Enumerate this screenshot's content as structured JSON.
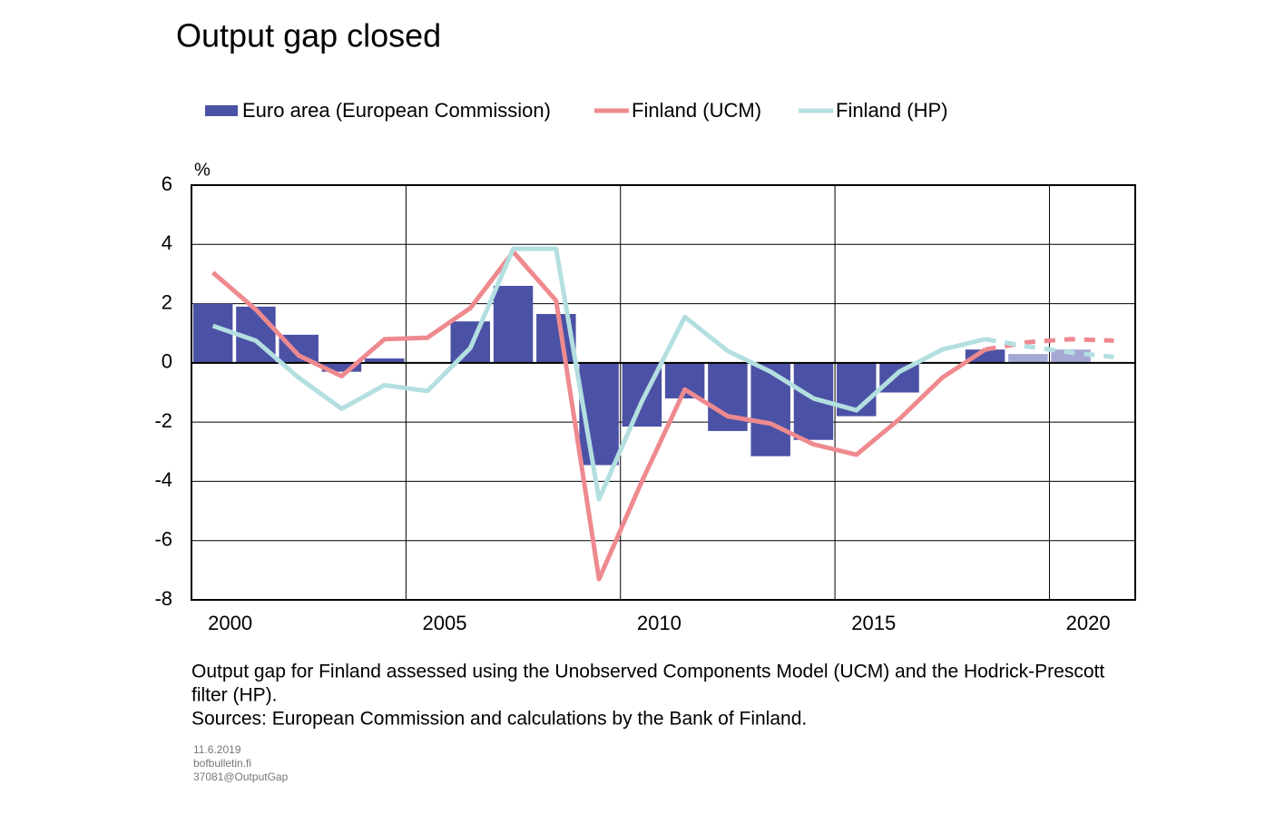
{
  "chart_data": {
    "type": "bar_line",
    "title": "Output gap closed",
    "y_unit": "%",
    "categories": [
      "2000",
      null,
      null,
      null,
      null,
      "2005",
      null,
      null,
      null,
      null,
      "2010",
      null,
      null,
      null,
      null,
      "2015",
      null,
      null,
      null,
      null,
      "2020",
      null
    ],
    "last_actual_index": 18,
    "series": [
      {
        "name": "Euro area (European Commission)",
        "type": "bar",
        "color": "#4b52a5",
        "forecast_color": "#a4a8d3",
        "values": [
          2.0,
          1.9,
          0.95,
          -0.3,
          0.15,
          0.0,
          1.4,
          2.6,
          1.65,
          -3.45,
          -2.15,
          -1.2,
          -2.3,
          -3.15,
          -2.6,
          -1.8,
          -1.0,
          0.0,
          0.45,
          0.3,
          0.45,
          null
        ]
      },
      {
        "name": "Finland (UCM)",
        "type": "line",
        "color": "#ee8a8f",
        "values": [
          3.05,
          1.8,
          0.25,
          -0.45,
          0.8,
          0.85,
          1.85,
          3.75,
          2.1,
          -7.3,
          -4.0,
          -0.9,
          -1.8,
          -2.05,
          -2.75,
          -3.1,
          -1.9,
          -0.5,
          0.45,
          0.7,
          0.8,
          0.75
        ]
      },
      {
        "name": "Finland (HP)",
        "type": "line",
        "color": "#b3dfe0",
        "values": [
          1.25,
          0.75,
          -0.5,
          -1.55,
          -0.75,
          -0.95,
          0.5,
          3.85,
          3.85,
          -4.6,
          -1.3,
          1.55,
          0.4,
          -0.3,
          -1.2,
          -1.6,
          -0.3,
          0.45,
          0.8,
          0.55,
          0.35,
          0.2
        ]
      }
    ],
    "ylim": [
      -8,
      6
    ],
    "yticks": [
      -8,
      -6,
      -4,
      -2,
      0,
      2,
      4,
      6
    ],
    "grid": true,
    "caption": [
      "Output gap for Finland assessed using the Unobserved Components Model (UCM) and the Hodrick-Prescott",
      "filter (HP).",
      "Sources: European Commission and calculations by the Bank of Finland."
    ],
    "footer": [
      "11.6.2019",
      "bofbulletin.fi",
      "37081@OutputGap"
    ]
  }
}
